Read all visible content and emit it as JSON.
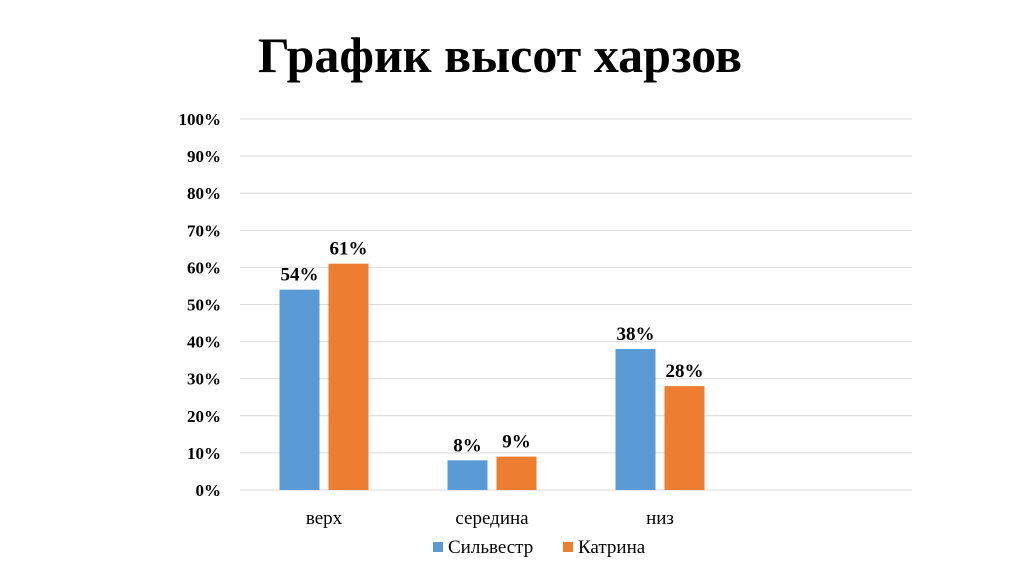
{
  "chart_data": {
    "type": "bar",
    "title": "График высот харзов",
    "categories": [
      "верх",
      "середина",
      "низ",
      ""
    ],
    "series": [
      {
        "name": "Сильвестр",
        "color": "#5b9bd5",
        "values": [
          54,
          8,
          38,
          null
        ],
        "labels": [
          "54%",
          "8%",
          "38%",
          ""
        ]
      },
      {
        "name": "Катрина",
        "color": "#ed7d31",
        "values": [
          61,
          9,
          28,
          null
        ],
        "labels": [
          "61%",
          "9%",
          "28%",
          ""
        ]
      }
    ],
    "yticks": [
      "0%",
      "10%",
      "20%",
      "30%",
      "40%",
      "50%",
      "60%",
      "70%",
      "80%",
      "90%",
      "100%"
    ],
    "ylim": [
      0,
      100
    ],
    "grid": true,
    "legend_position": "bottom"
  }
}
